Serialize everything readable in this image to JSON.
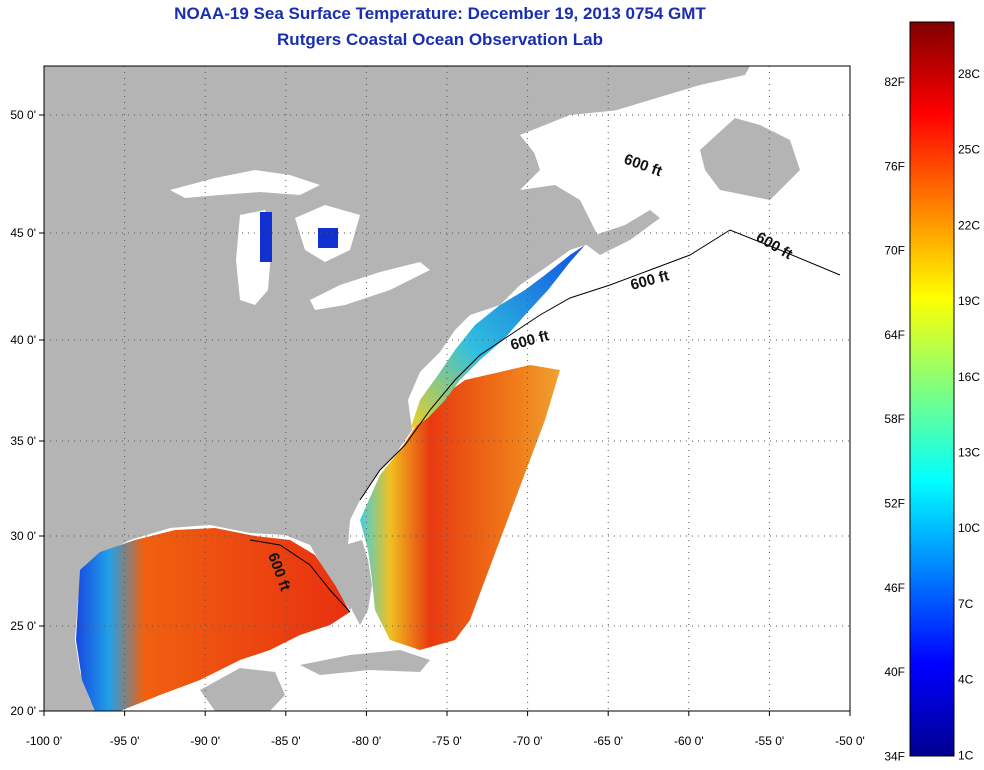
{
  "title": {
    "line1": "NOAA-19 Sea Surface Temperature:  December 19, 2013 0754 GMT",
    "line2": "Rutgers Coastal Ocean Observation Lab"
  },
  "axes": {
    "lon_labels": [
      "-100 0'",
      "-95 0'",
      "-90 0'",
      "-85 0'",
      "-80 0'",
      "-75 0'",
      "-70 0'",
      "-65 0'",
      "-60 0'",
      "-55 0'",
      "-50 0'"
    ],
    "lat_labels": [
      "50 0'",
      "45 0'",
      "40 0'",
      "35 0'",
      "30 0'",
      "25 0'",
      "20 0'"
    ]
  },
  "contour_labels": [
    "600 ft",
    "600 ft",
    "600 ft",
    "600 ft",
    "600 ft"
  ],
  "colorbar": {
    "f_labels": [
      "82F",
      "76F",
      "70F",
      "64F",
      "58F",
      "52F",
      "46F",
      "40F",
      "34F"
    ],
    "c_labels": [
      "28C",
      "25C",
      "22C",
      "19C",
      "16C",
      "13C",
      "10C",
      "7C",
      "4C",
      "1C"
    ]
  },
  "colors": {
    "land": "#b4b4b4",
    "ocean_nodata": "#ffffff",
    "title": "#1a2eb0",
    "warm": "#e02010",
    "cold": "#1030d0"
  }
}
